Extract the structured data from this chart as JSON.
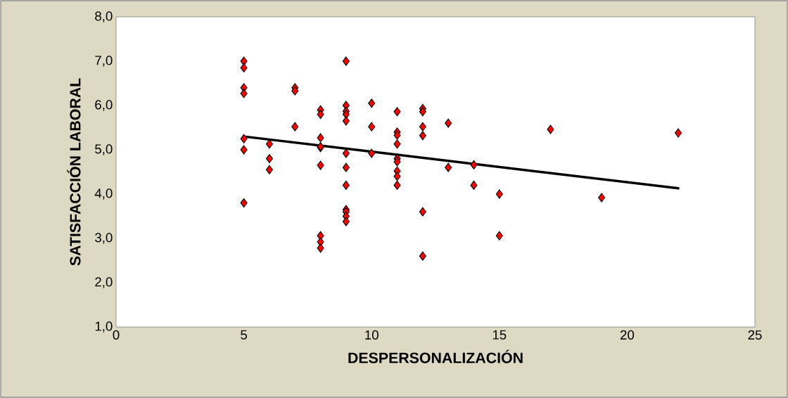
{
  "chart_data": {
    "type": "scatter",
    "xlabel": "DESPERSONALIZACIÓN",
    "ylabel": "SATISFACCIÓN LABORAL",
    "xlim": [
      0,
      25
    ],
    "ylim": [
      1,
      8
    ],
    "xticks": [
      0,
      5,
      10,
      15,
      20,
      25
    ],
    "yticks": [
      {
        "value": 1,
        "label": "1,0"
      },
      {
        "value": 2,
        "label": "2,0"
      },
      {
        "value": 3,
        "label": "3,0"
      },
      {
        "value": 4,
        "label": "4,0"
      },
      {
        "value": 5,
        "label": "5,0"
      },
      {
        "value": 6,
        "label": "6,0"
      },
      {
        "value": 7,
        "label": "7,0"
      },
      {
        "value": 8,
        "label": "8,0"
      }
    ],
    "grid": false,
    "series": [
      {
        "color": "#ff0000",
        "marker": "diamond",
        "x": [
          5,
          5,
          5,
          5,
          5,
          5,
          5,
          6,
          6,
          6,
          7,
          7,
          7,
          8,
          8,
          8,
          8,
          8,
          8,
          8,
          8,
          8,
          9,
          9,
          9,
          9,
          9,
          9,
          9,
          9,
          9,
          9,
          9,
          9,
          10,
          10,
          10,
          11,
          11,
          11,
          11,
          11,
          11,
          11,
          11,
          11,
          12,
          12,
          12,
          12,
          12,
          12,
          13,
          13,
          14,
          14,
          15,
          15,
          17,
          19,
          22
        ],
        "values": [
          7.0,
          6.85,
          6.4,
          6.27,
          5.25,
          5.0,
          3.8,
          5.13,
          4.8,
          4.55,
          6.4,
          6.33,
          5.52,
          5.9,
          5.8,
          5.27,
          5.05,
          4.65,
          3.06,
          2.92,
          2.78,
          5.07,
          7.0,
          6.0,
          5.87,
          5.8,
          5.65,
          4.92,
          4.6,
          4.2,
          3.65,
          3.6,
          3.5,
          3.38,
          6.05,
          5.52,
          4.92,
          5.86,
          5.4,
          5.33,
          5.13,
          4.8,
          4.73,
          4.52,
          4.4,
          4.2,
          5.93,
          5.86,
          5.52,
          5.32,
          3.6,
          2.6,
          5.6,
          4.6,
          4.66,
          4.2,
          4.0,
          3.06,
          5.46,
          3.92,
          5.38
        ]
      },
      {
        "type": "line",
        "color": "#000000",
        "marker": "none",
        "line_style": "solid",
        "x": [
          5,
          22
        ],
        "values": [
          5.3,
          4.13
        ]
      }
    ]
  }
}
